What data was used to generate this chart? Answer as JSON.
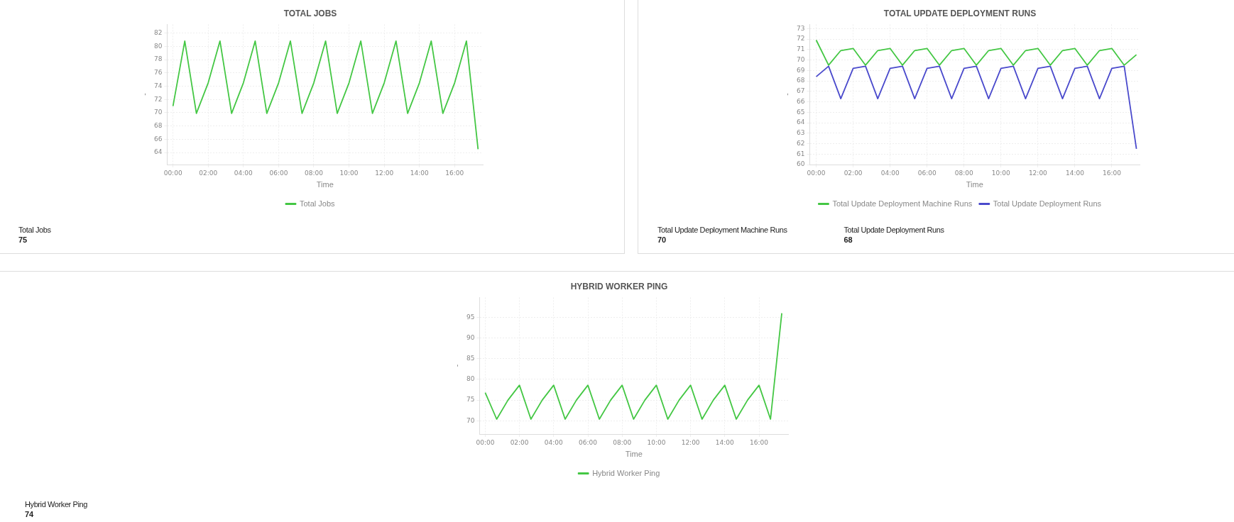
{
  "chart_data": [
    {
      "type": "line",
      "title": "TOTAL JOBS",
      "xlabel": "Time",
      "ylabel": "-",
      "legend": "bottom",
      "grid": true,
      "marker": "none",
      "line_style": "solid",
      "x": [
        0,
        0.67,
        1.33,
        2,
        2.67,
        3.33,
        4,
        4.67,
        5.33,
        6,
        6.67,
        7.33,
        8,
        8.67,
        9.33,
        10,
        10.67,
        11.33,
        12,
        12.67,
        13.33,
        14,
        14.67,
        15.33,
        16,
        16.67,
        17.33
      ],
      "xlim": [
        -0.33,
        17.6
      ],
      "xticks": [
        {
          "value": 0,
          "label": "00:00"
        },
        {
          "value": 2,
          "label": "02:00"
        },
        {
          "value": 4,
          "label": "04:00"
        },
        {
          "value": 6,
          "label": "06:00"
        },
        {
          "value": 8,
          "label": "08:00"
        },
        {
          "value": 10,
          "label": "10:00"
        },
        {
          "value": 12,
          "label": "12:00"
        },
        {
          "value": 14,
          "label": "14:00"
        },
        {
          "value": 16,
          "label": "16:00"
        }
      ],
      "ylim": [
        62.2,
        83.3
      ],
      "yticks": [
        64,
        66,
        68,
        70,
        72,
        74,
        76,
        78,
        80,
        82
      ],
      "series": [
        {
          "name": "Total Jobs",
          "color": "#44c744",
          "values": [
            71,
            80.8,
            69.9,
            74.5,
            80.8,
            69.9,
            74.5,
            80.8,
            69.9,
            74.5,
            80.8,
            69.9,
            74.5,
            80.8,
            69.9,
            74.5,
            80.8,
            69.9,
            74.5,
            80.8,
            69.9,
            74.5,
            80.8,
            69.9,
            74.5,
            80.8,
            64.5
          ]
        }
      ],
      "annotations": [
        "Total Jobs",
        "75"
      ]
    },
    {
      "type": "line",
      "title": "TOTAL UPDATE DEPLOYMENT RUNS",
      "xlabel": "Time",
      "ylabel": "-",
      "legend": "bottom",
      "grid": true,
      "marker": "none",
      "line_style": "solid",
      "x": [
        0,
        0.67,
        1.33,
        2,
        2.67,
        3.33,
        4,
        4.67,
        5.33,
        6,
        6.67,
        7.33,
        8,
        8.67,
        9.33,
        10,
        10.67,
        11.33,
        12,
        12.67,
        13.33,
        14,
        14.67,
        15.33,
        16,
        16.67,
        17.33
      ],
      "xlim": [
        -0.35,
        17.5
      ],
      "xticks": [
        {
          "value": 0,
          "label": "00:00"
        },
        {
          "value": 2,
          "label": "02:00"
        },
        {
          "value": 4,
          "label": "04:00"
        },
        {
          "value": 6,
          "label": "06:00"
        },
        {
          "value": 8,
          "label": "08:00"
        },
        {
          "value": 10,
          "label": "10:00"
        },
        {
          "value": 12,
          "label": "12:00"
        },
        {
          "value": 14,
          "label": "14:00"
        },
        {
          "value": 16,
          "label": "16:00"
        }
      ],
      "ylim": [
        60,
        73.4
      ],
      "yticks": [
        60,
        61,
        62,
        63,
        64,
        65,
        66,
        67,
        68,
        69,
        70,
        71,
        72,
        73
      ],
      "series": [
        {
          "name": "Total Update Deployment Machine Runs",
          "color": "#44c744",
          "values": [
            71.9,
            69.5,
            70.9,
            71.1,
            69.5,
            70.9,
            71.1,
            69.5,
            70.9,
            71.1,
            69.5,
            70.9,
            71.1,
            69.5,
            70.9,
            71.1,
            69.5,
            70.9,
            71.1,
            69.5,
            70.9,
            71.1,
            69.5,
            70.9,
            71.1,
            69.5,
            70.5
          ]
        },
        {
          "name": "Total Update Deployment Runs",
          "color": "#4a4acc",
          "values": [
            68.4,
            69.4,
            66.3,
            69.2,
            69.4,
            66.3,
            69.2,
            69.4,
            66.3,
            69.2,
            69.4,
            66.3,
            69.2,
            69.4,
            66.3,
            69.2,
            69.4,
            66.3,
            69.2,
            69.4,
            66.3,
            69.2,
            69.4,
            66.3,
            69.2,
            69.4,
            61.5
          ]
        }
      ],
      "annotations": [
        "Total Update Deployment Machine Runs",
        "70",
        "Total Update Deployment Runs",
        "68"
      ]
    },
    {
      "type": "line",
      "title": "HYBRID WORKER PING",
      "xlabel": "Time",
      "ylabel": "-",
      "legend": "bottom",
      "grid": true,
      "marker": "none",
      "line_style": "solid",
      "x": [
        0,
        0.67,
        1.33,
        2,
        2.67,
        3.33,
        4,
        4.67,
        5.33,
        6,
        6.67,
        7.33,
        8,
        8.67,
        9.33,
        10,
        10.67,
        11.33,
        12,
        12.67,
        13.33,
        14,
        14.67,
        15.33,
        16,
        16.67,
        17.33
      ],
      "xlim": [
        -0.33,
        17.7
      ],
      "xticks": [
        {
          "value": 0,
          "label": "00:00"
        },
        {
          "value": 2,
          "label": "02:00"
        },
        {
          "value": 4,
          "label": "04:00"
        },
        {
          "value": 6,
          "label": "06:00"
        },
        {
          "value": 8,
          "label": "08:00"
        },
        {
          "value": 10,
          "label": "10:00"
        },
        {
          "value": 12,
          "label": "12:00"
        },
        {
          "value": 14,
          "label": "14:00"
        },
        {
          "value": 16,
          "label": "16:00"
        }
      ],
      "ylim": [
        66.8,
        99.8
      ],
      "yticks": [
        70,
        75,
        80,
        85,
        90,
        95
      ],
      "series": [
        {
          "name": "Hybrid Worker Ping",
          "color": "#44c744",
          "values": [
            76.8,
            70.4,
            75,
            78.6,
            70.4,
            75,
            78.6,
            70.4,
            75,
            78.6,
            70.4,
            75,
            78.6,
            70.4,
            75,
            78.6,
            70.4,
            75,
            78.6,
            70.4,
            75,
            78.6,
            70.4,
            75,
            78.6,
            70.4,
            96
          ]
        }
      ],
      "annotations": [
        "Hybrid Worker Ping",
        "74"
      ]
    }
  ]
}
